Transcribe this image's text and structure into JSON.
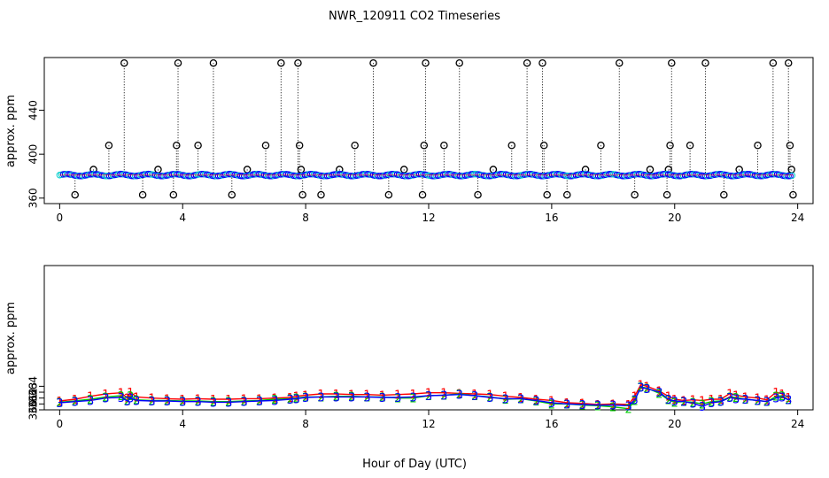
{
  "title": "NWR_120911  CO2 Timeseries",
  "xlabel": "Hour of Day (UTC)",
  "colors": {
    "series1": "#ff0000",
    "series2": "#00cc00",
    "series3": "#0000ff",
    "cyan": "#00cccc",
    "axis": "#000000"
  },
  "chart_data": [
    {
      "type": "scatter",
      "title": "",
      "ylabel": "approx. ppm",
      "xlim": [
        -0.5,
        24.5
      ],
      "ylim": [
        355,
        488
      ],
      "xticks": [
        "0",
        "4",
        "8",
        "12",
        "16",
        "20",
        "24"
      ],
      "xtick_values": [
        0,
        4,
        8,
        12,
        16,
        20,
        24
      ],
      "yticks": [
        "360",
        "400",
        "440"
      ],
      "ytick_values": [
        360,
        400,
        440
      ],
      "baseline": 381,
      "spikes": [
        {
          "x": 0.5,
          "y": 363
        },
        {
          "x": 1.1,
          "y": 386
        },
        {
          "x": 1.6,
          "y": 408
        },
        {
          "x": 2.1,
          "y": 483
        },
        {
          "x": 2.7,
          "y": 363
        },
        {
          "x": 3.2,
          "y": 386
        },
        {
          "x": 3.7,
          "y": 363
        },
        {
          "x": 3.8,
          "y": 408
        },
        {
          "x": 3.85,
          "y": 483
        },
        {
          "x": 4.5,
          "y": 408
        },
        {
          "x": 5.0,
          "y": 483
        },
        {
          "x": 5.6,
          "y": 363
        },
        {
          "x": 6.1,
          "y": 386
        },
        {
          "x": 6.7,
          "y": 408
        },
        {
          "x": 7.2,
          "y": 483
        },
        {
          "x": 7.75,
          "y": 483
        },
        {
          "x": 7.8,
          "y": 408
        },
        {
          "x": 7.85,
          "y": 386
        },
        {
          "x": 7.9,
          "y": 363
        },
        {
          "x": 8.5,
          "y": 363
        },
        {
          "x": 9.1,
          "y": 386
        },
        {
          "x": 9.6,
          "y": 408
        },
        {
          "x": 10.2,
          "y": 483
        },
        {
          "x": 10.7,
          "y": 363
        },
        {
          "x": 11.2,
          "y": 386
        },
        {
          "x": 11.8,
          "y": 363
        },
        {
          "x": 11.85,
          "y": 408
        },
        {
          "x": 11.9,
          "y": 483
        },
        {
          "x": 12.5,
          "y": 408
        },
        {
          "x": 13.0,
          "y": 483
        },
        {
          "x": 13.6,
          "y": 363
        },
        {
          "x": 14.1,
          "y": 386
        },
        {
          "x": 14.7,
          "y": 408
        },
        {
          "x": 15.2,
          "y": 483
        },
        {
          "x": 15.7,
          "y": 483
        },
        {
          "x": 15.75,
          "y": 408
        },
        {
          "x": 15.85,
          "y": 363
        },
        {
          "x": 16.5,
          "y": 363
        },
        {
          "x": 17.1,
          "y": 386
        },
        {
          "x": 17.6,
          "y": 408
        },
        {
          "x": 18.2,
          "y": 483
        },
        {
          "x": 18.7,
          "y": 363
        },
        {
          "x": 19.2,
          "y": 386
        },
        {
          "x": 19.75,
          "y": 363
        },
        {
          "x": 19.8,
          "y": 386
        },
        {
          "x": 19.85,
          "y": 408
        },
        {
          "x": 19.9,
          "y": 483
        },
        {
          "x": 20.5,
          "y": 408
        },
        {
          "x": 21.0,
          "y": 483
        },
        {
          "x": 21.6,
          "y": 363
        },
        {
          "x": 22.1,
          "y": 386
        },
        {
          "x": 22.7,
          "y": 408
        },
        {
          "x": 23.2,
          "y": 483
        },
        {
          "x": 23.7,
          "y": 483
        },
        {
          "x": 23.75,
          "y": 408
        },
        {
          "x": 23.8,
          "y": 386
        },
        {
          "x": 23.85,
          "y": 363
        }
      ]
    },
    {
      "type": "line",
      "title": "",
      "ylabel": "approx. ppm",
      "xlim": [
        -0.5,
        24.5
      ],
      "ylim": [
        360,
        384.5
      ],
      "xticks": [
        "0",
        "4",
        "8",
        "12",
        "16",
        "20",
        "24"
      ],
      "xtick_values": [
        0,
        4,
        8,
        12,
        16,
        20,
        24
      ],
      "yticks": [
        "360",
        "361",
        "362",
        "363",
        "364"
      ],
      "ytick_values": [
        360,
        361,
        362,
        363,
        364
      ],
      "x": [
        0,
        0.5,
        1,
        1.5,
        2,
        2.2,
        2.3,
        2.5,
        3,
        3.5,
        4,
        4.5,
        5,
        5.5,
        6,
        6.5,
        7,
        7.5,
        7.7,
        8,
        8.5,
        9,
        9.5,
        10,
        10.5,
        11,
        11.5,
        12,
        12.5,
        13,
        13.5,
        14,
        14.5,
        15,
        15.5,
        16,
        16.5,
        17,
        17.5,
        18,
        18.5,
        18.7,
        18.9,
        19.1,
        19.5,
        19.8,
        20,
        20.3,
        20.6,
        20.9,
        21.2,
        21.5,
        21.8,
        22,
        22.3,
        22.7,
        23,
        23.3,
        23.5,
        23.7
      ],
      "series": [
        {
          "name": "1",
          "marker": "1",
          "values": [
            361.5,
            361.8,
            362.3,
            362.7,
            362.9,
            362.0,
            363.0,
            362.2,
            362.0,
            361.9,
            361.8,
            361.9,
            361.8,
            361.8,
            361.9,
            361.9,
            362.0,
            362.1,
            362.3,
            362.5,
            362.7,
            362.7,
            362.6,
            362.6,
            362.5,
            362.6,
            362.7,
            362.9,
            362.9,
            362.8,
            362.7,
            362.6,
            362.3,
            362.1,
            361.8,
            361.6,
            361.2,
            361.1,
            360.9,
            361.0,
            360.9,
            362.3,
            364.3,
            364.0,
            363.2,
            362.3,
            361.8,
            361.6,
            361.7,
            361.6,
            361.8,
            361.8,
            362.8,
            362.5,
            362.2,
            362.0,
            361.7,
            363.0,
            362.7,
            362.1
          ]
        },
        {
          "name": "2",
          "marker": "2",
          "values": [
            361.3,
            361.5,
            361.8,
            362.2,
            362.4,
            361.6,
            362.4,
            361.7,
            361.6,
            361.6,
            361.5,
            361.5,
            361.4,
            361.4,
            361.5,
            361.6,
            361.8,
            361.9,
            362.0,
            362.2,
            362.2,
            362.3,
            362.3,
            362.2,
            362.2,
            362.0,
            362.0,
            362.4,
            362.5,
            362.7,
            362.4,
            362.2,
            361.8,
            361.9,
            361.5,
            361.0,
            361.0,
            360.8,
            360.7,
            360.5,
            360.2,
            361.6,
            363.9,
            363.7,
            362.8,
            361.7,
            361.3,
            361.4,
            361.3,
            361.0,
            361.4,
            361.5,
            362.2,
            362.1,
            361.8,
            361.6,
            361.4,
            362.3,
            362.4,
            361.7
          ]
        },
        {
          "name": "3",
          "marker": "3",
          "values": [
            361.2,
            361.4,
            361.6,
            362.0,
            362.1,
            361.5,
            362.0,
            361.6,
            361.5,
            361.5,
            361.4,
            361.4,
            361.3,
            361.3,
            361.4,
            361.5,
            361.6,
            361.8,
            361.9,
            362.1,
            362.2,
            362.2,
            362.2,
            362.2,
            362.1,
            362.1,
            362.2,
            362.4,
            362.5,
            362.6,
            362.4,
            362.1,
            361.9,
            361.9,
            361.6,
            361.2,
            361.0,
            360.9,
            360.8,
            360.8,
            360.7,
            361.7,
            363.8,
            363.6,
            363.0,
            361.8,
            361.5,
            361.4,
            361.1,
            360.6,
            361.2,
            361.4,
            362.1,
            361.9,
            361.8,
            361.6,
            361.4,
            362.0,
            362.2,
            361.7
          ]
        }
      ]
    }
  ]
}
